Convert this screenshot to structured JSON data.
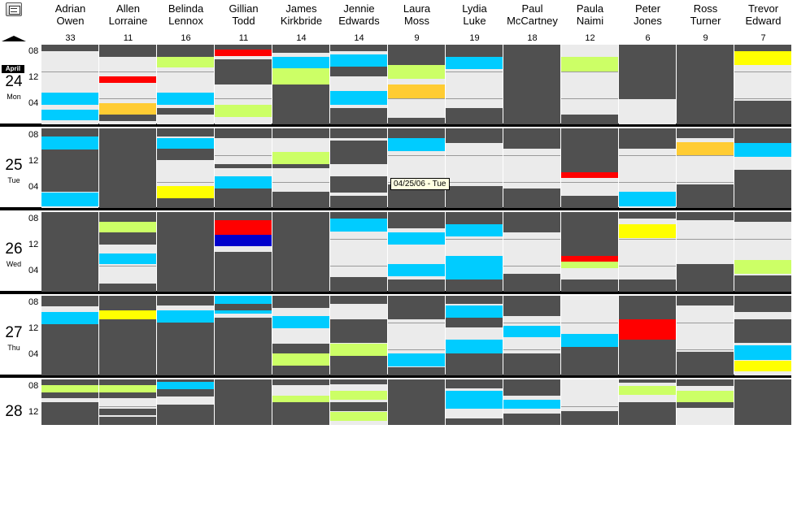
{
  "colors": {
    "busy": "#505050",
    "lane": "#ebebeb",
    "yellow": "#ffff00",
    "green": "#ccff66",
    "cyan": "#00ccff",
    "red": "#ff0000",
    "orange": "#ffcc33",
    "blue": "#0000cc"
  },
  "people": [
    {
      "first": "Adrian",
      "last": "Owen",
      "count": "33"
    },
    {
      "first": "Allen",
      "last": "Lorraine",
      "count": "11"
    },
    {
      "first": "Belinda",
      "last": "Lennox",
      "count": "16"
    },
    {
      "first": "Gillian",
      "last": "Todd",
      "count": "11"
    },
    {
      "first": "James",
      "last": "Kirkbride",
      "count": "14"
    },
    {
      "first": "Jennie",
      "last": "Edwards",
      "count": "14"
    },
    {
      "first": "Laura",
      "last": "Moss",
      "count": "9"
    },
    {
      "first": "Lydia",
      "last": "Luke",
      "count": "19"
    },
    {
      "first": "Paul",
      "last": "McCartney",
      "count": "18"
    },
    {
      "first": "Paula",
      "last": "Naimi",
      "count": "12"
    },
    {
      "first": "Peter",
      "last": "Jones",
      "count": "6"
    },
    {
      "first": "Ross",
      "last": "Turner",
      "count": "9"
    },
    {
      "first": "Trevor",
      "last": "Edward",
      "count": "7"
    }
  ],
  "days": [
    {
      "month": "April",
      "num": "24",
      "weekday": "Mon",
      "hours": [
        "08",
        "12",
        "04"
      ]
    },
    {
      "month": "",
      "num": "25",
      "weekday": "Tue",
      "hours": [
        "08",
        "12",
        "04"
      ]
    },
    {
      "month": "",
      "num": "26",
      "weekday": "Wed",
      "hours": [
        "08",
        "12",
        "04"
      ]
    },
    {
      "month": "",
      "num": "27",
      "weekday": "Thu",
      "hours": [
        "08",
        "12",
        "04"
      ]
    },
    {
      "month": "",
      "num": "28",
      "weekday": "",
      "hours": [
        "08",
        "12"
      ]
    }
  ],
  "tooltip": "04/25/06 - Tue",
  "schedule": [
    [
      [
        [
          "busy",
          0,
          0.08
        ],
        [
          "cyan",
          0.6,
          0.75
        ],
        [
          "cyan",
          0.82,
          0.95
        ]
      ],
      [
        [
          "busy",
          0,
          0.15
        ],
        [
          "cyan",
          0.1,
          0.27
        ],
        [
          "busy",
          0.27,
          0.8
        ],
        [
          "cyan",
          0.81,
          0.98
        ]
      ],
      [
        [
          "busy",
          0,
          1
        ]
      ],
      [
        [
          "busy",
          0,
          0.13
        ],
        [
          "cyan",
          0.2,
          0.36
        ],
        [
          "busy",
          0.36,
          1
        ]
      ],
      [
        [
          "busy",
          0,
          0.12
        ],
        [
          "green",
          0.12,
          0.28
        ],
        [
          "busy",
          0.28,
          0.4
        ],
        [
          "busy",
          0.5,
          1
        ]
      ]
    ],
    [
      [
        [
          "busy",
          0,
          0.15
        ],
        [
          "red",
          0.4,
          0.48
        ],
        [
          "orange",
          0.73,
          0.88
        ],
        [
          "busy",
          0.88,
          0.96
        ]
      ],
      [
        [
          "busy",
          0,
          1
        ]
      ],
      [
        [
          "busy",
          0,
          0.12
        ],
        [
          "green",
          0.12,
          0.25
        ],
        [
          "busy",
          0.25,
          0.4
        ],
        [
          "cyan",
          0.52,
          0.65
        ],
        [
          "busy",
          0.9,
          1
        ]
      ],
      [
        [
          "busy",
          0,
          0.2
        ],
        [
          "busy",
          0.25,
          0.4
        ],
        [
          "yellow",
          0.18,
          0.3
        ],
        [
          "busy",
          0.3,
          1
        ]
      ],
      [
        [
          "busy",
          0,
          0.12
        ],
        [
          "green",
          0.12,
          0.28
        ],
        [
          "busy",
          0.28,
          0.4
        ],
        [
          "busy",
          0.65,
          0.8
        ],
        [
          "busy",
          0.82,
          1
        ]
      ]
    ],
    [
      [
        [
          "busy",
          0,
          0.15
        ],
        [
          "green",
          0.15,
          0.28
        ],
        [
          "cyan",
          0.6,
          0.75
        ],
        [
          "busy",
          0.8,
          0.88
        ]
      ],
      [
        [
          "busy",
          0,
          0.1
        ],
        [
          "cyan",
          0.12,
          0.26
        ],
        [
          "busy",
          0.26,
          0.4
        ],
        [
          "yellow",
          0.72,
          0.88
        ],
        [
          "busy",
          0.88,
          1
        ]
      ],
      [
        [
          "busy",
          0,
          1
        ]
      ],
      [
        [
          "busy",
          0,
          0.12
        ],
        [
          "cyan",
          0.18,
          0.34
        ],
        [
          "busy",
          0.34,
          1
        ]
      ],
      [
        [
          "busy",
          0,
          0.05
        ],
        [
          "cyan",
          0.05,
          0.22
        ],
        [
          "busy",
          0.22,
          0.38
        ],
        [
          "busy",
          0.55,
          1
        ]
      ]
    ],
    [
      [
        [
          "busy",
          0,
          0.1
        ],
        [
          "cyan",
          0.22,
          0.38
        ],
        [
          "red",
          0.06,
          0.14
        ],
        [
          "busy",
          0.18,
          0.5
        ],
        [
          "green",
          0.75,
          0.9
        ]
      ],
      [
        [
          "busy",
          0,
          0.12
        ],
        [
          "busy",
          0.45,
          0.5
        ],
        [
          "cyan",
          0.6,
          0.75
        ],
        [
          "busy",
          0.75,
          1
        ]
      ],
      [
        [
          "busy",
          0,
          0.15
        ],
        [
          "red",
          0.1,
          0.18
        ],
        [
          "busy",
          0.5,
          1
        ],
        [
          "blue",
          0.25,
          0.42
        ],
        [
          "red",
          0.12,
          0.28
        ]
      ],
      [
        [
          "cyan",
          0,
          0.22
        ],
        [
          "busy",
          0.1,
          0.18
        ],
        [
          "busy",
          0.28,
          1
        ]
      ],
      [
        [
          "busy",
          0,
          1
        ]
      ]
    ],
    [
      [
        [
          "busy",
          0,
          0.1
        ],
        [
          "cyan",
          0.15,
          0.3
        ],
        [
          "green",
          0.3,
          0.5
        ],
        [
          "busy",
          0.5,
          1
        ]
      ],
      [
        [
          "busy",
          0,
          0.12
        ],
        [
          "busy",
          0.35,
          0.5
        ],
        [
          "green",
          0.3,
          0.45
        ],
        [
          "busy",
          0.8,
          1
        ]
      ],
      [
        [
          "busy",
          0,
          1
        ]
      ],
      [
        [
          "busy",
          0,
          0.15
        ],
        [
          "cyan",
          0.25,
          0.4
        ],
        [
          "busy",
          0.6,
          0.75
        ],
        [
          "green",
          0.72,
          0.88
        ],
        [
          "busy",
          0.88,
          1
        ]
      ],
      [
        [
          "busy",
          0,
          0.12
        ],
        [
          "green",
          0.35,
          0.5
        ],
        [
          "busy",
          0.5,
          1
        ]
      ]
    ],
    [
      [
        [
          "busy",
          0,
          0.08
        ],
        [
          "cyan",
          0.12,
          0.28
        ],
        [
          "busy",
          0.28,
          0.4
        ],
        [
          "cyan",
          0.58,
          0.75
        ],
        [
          "busy",
          0.8,
          1
        ]
      ],
      [
        [
          "busy",
          0,
          0.12
        ],
        [
          "busy",
          0.15,
          0.45
        ],
        [
          "busy",
          0.6,
          0.8
        ],
        [
          "busy",
          0.85,
          1
        ]
      ],
      [
        [
          "busy",
          0,
          0.08
        ],
        [
          "cyan",
          0.08,
          0.24
        ],
        [
          "busy",
          0.82,
          1
        ]
      ],
      [
        [
          "busy",
          0,
          0.1
        ],
        [
          "busy",
          0.3,
          0.6
        ],
        [
          "green",
          0.6,
          0.75
        ],
        [
          "busy",
          0.75,
          1
        ]
      ],
      [
        [
          "busy",
          0,
          0.1
        ],
        [
          "green",
          0.25,
          0.45
        ],
        [
          "busy",
          0.5,
          0.7
        ],
        [
          "green",
          0.72,
          0.92
        ]
      ]
    ],
    [
      [
        [
          "busy",
          0,
          0.25
        ],
        [
          "green",
          0.25,
          0.42
        ],
        [
          "orange",
          0.5,
          0.67
        ],
        [
          "busy",
          0.92,
          1
        ]
      ],
      [
        [
          "busy",
          0,
          0.12
        ],
        [
          "cyan",
          0.12,
          0.28
        ],
        [
          "busy",
          0.7,
          1
        ]
      ],
      [
        [
          "busy",
          0,
          0.2
        ],
        [
          "cyan",
          0.25,
          0.4
        ],
        [
          "cyan",
          0.65,
          0.8
        ],
        [
          "busy",
          0.85,
          1
        ]
      ],
      [
        [
          "busy",
          0,
          0.3
        ],
        [
          "cyan",
          0.72,
          0.88
        ],
        [
          "busy",
          0.9,
          1
        ]
      ],
      [
        [
          "busy",
          0,
          1
        ]
      ]
    ],
    [
      [
        [
          "busy",
          0,
          0.15
        ],
        [
          "cyan",
          0.15,
          0.3
        ],
        [
          "busy",
          0.8,
          1
        ]
      ],
      [
        [
          "busy",
          0,
          0.18
        ],
        [
          "busy",
          0.72,
          1
        ]
      ],
      [
        [
          "busy",
          0,
          0.15
        ],
        [
          "cyan",
          0.15,
          0.3
        ],
        [
          "cyan",
          0.55,
          0.85
        ],
        [
          "busy",
          0.85,
          1
        ]
      ],
      [
        [
          "busy",
          0,
          0.1
        ],
        [
          "cyan",
          0.12,
          0.28
        ],
        [
          "busy",
          0.28,
          0.4
        ],
        [
          "cyan",
          0.55,
          0.72
        ],
        [
          "busy",
          0.72,
          1
        ]
      ],
      [
        [
          "busy",
          0,
          0.2
        ],
        [
          "cyan",
          0.25,
          0.65
        ],
        [
          "busy",
          0.85,
          1
        ]
      ]
    ],
    [
      [
        [
          "busy",
          0,
          1
        ]
      ],
      [
        [
          "busy",
          0,
          0.25
        ],
        [
          "busy",
          0.75,
          1
        ]
      ],
      [
        [
          "busy",
          0,
          0.25
        ],
        [
          "busy",
          0.78,
          1
        ]
      ],
      [
        [
          "busy",
          0,
          0.25
        ],
        [
          "cyan",
          0.38,
          0.52
        ],
        [
          "busy",
          0.72,
          1
        ]
      ],
      [
        [
          "busy",
          0,
          0.35
        ],
        [
          "cyan",
          0.45,
          0.65
        ],
        [
          "busy",
          0.75,
          1
        ]
      ]
    ],
    [
      [
        [
          "green",
          0.15,
          0.33
        ],
        [
          "busy",
          0.88,
          1
        ]
      ],
      [
        [
          "busy",
          0,
          0.55
        ],
        [
          "red",
          0.55,
          0.62
        ],
        [
          "busy",
          0.85,
          1
        ]
      ],
      [
        [
          "busy",
          0,
          0.55
        ],
        [
          "red",
          0.55,
          0.62
        ],
        [
          "green",
          0.62,
          0.7
        ],
        [
          "busy",
          0.85,
          1
        ]
      ],
      [
        [
          "cyan",
          0.48,
          0.64
        ],
        [
          "busy",
          0.64,
          1
        ]
      ],
      [
        [
          "busy",
          0.7,
          1
        ]
      ]
    ],
    [
      [
        [
          "busy",
          0,
          0.68
        ]
      ],
      [
        [
          "busy",
          0,
          0.25
        ],
        [
          "cyan",
          0.8,
          0.98
        ]
      ],
      [
        [
          "busy",
          0,
          0.08
        ],
        [
          "yellow",
          0.15,
          0.32
        ],
        [
          "busy",
          0.85,
          1
        ]
      ],
      [
        [
          "busy",
          0,
          0.3
        ],
        [
          "red",
          0.3,
          0.55
        ],
        [
          "busy",
          0.55,
          1
        ]
      ],
      [
        [
          "busy",
          0,
          0.08
        ],
        [
          "green",
          0.15,
          0.35
        ],
        [
          "busy",
          0.5,
          1
        ]
      ]
    ],
    [
      [
        [
          "busy",
          0,
          1
        ]
      ],
      [
        [
          "busy",
          0,
          0.12
        ],
        [
          "orange",
          0.17,
          0.33
        ],
        [
          "busy",
          0.7,
          1
        ]
      ],
      [
        [
          "busy",
          0,
          0.1
        ],
        [
          "busy",
          0.65,
          1
        ]
      ],
      [
        [
          "busy",
          0,
          0.12
        ],
        [
          "busy",
          0.7,
          1
        ]
      ],
      [
        [
          "busy",
          0,
          0.15
        ],
        [
          "green",
          0.25,
          0.5
        ],
        [
          "busy",
          0.5,
          0.62
        ]
      ]
    ],
    [
      [
        [
          "busy",
          0,
          0.08
        ],
        [
          "yellow",
          0.08,
          0.25
        ],
        [
          "busy",
          0.7,
          1
        ]
      ],
      [
        [
          "busy",
          0,
          0.18
        ],
        [
          "cyan",
          0.18,
          0.35
        ],
        [
          "busy",
          0.52,
          1
        ]
      ],
      [
        [
          "busy",
          0,
          0.12
        ],
        [
          "green",
          0.6,
          0.77
        ],
        [
          "busy",
          0.8,
          1
        ]
      ],
      [
        [
          "busy",
          0,
          0.2
        ],
        [
          "busy",
          0.3,
          0.6
        ],
        [
          "cyan",
          0.62,
          0.8
        ],
        [
          "yellow",
          0.82,
          0.95
        ]
      ],
      [
        [
          "busy",
          0,
          1
        ]
      ]
    ]
  ]
}
